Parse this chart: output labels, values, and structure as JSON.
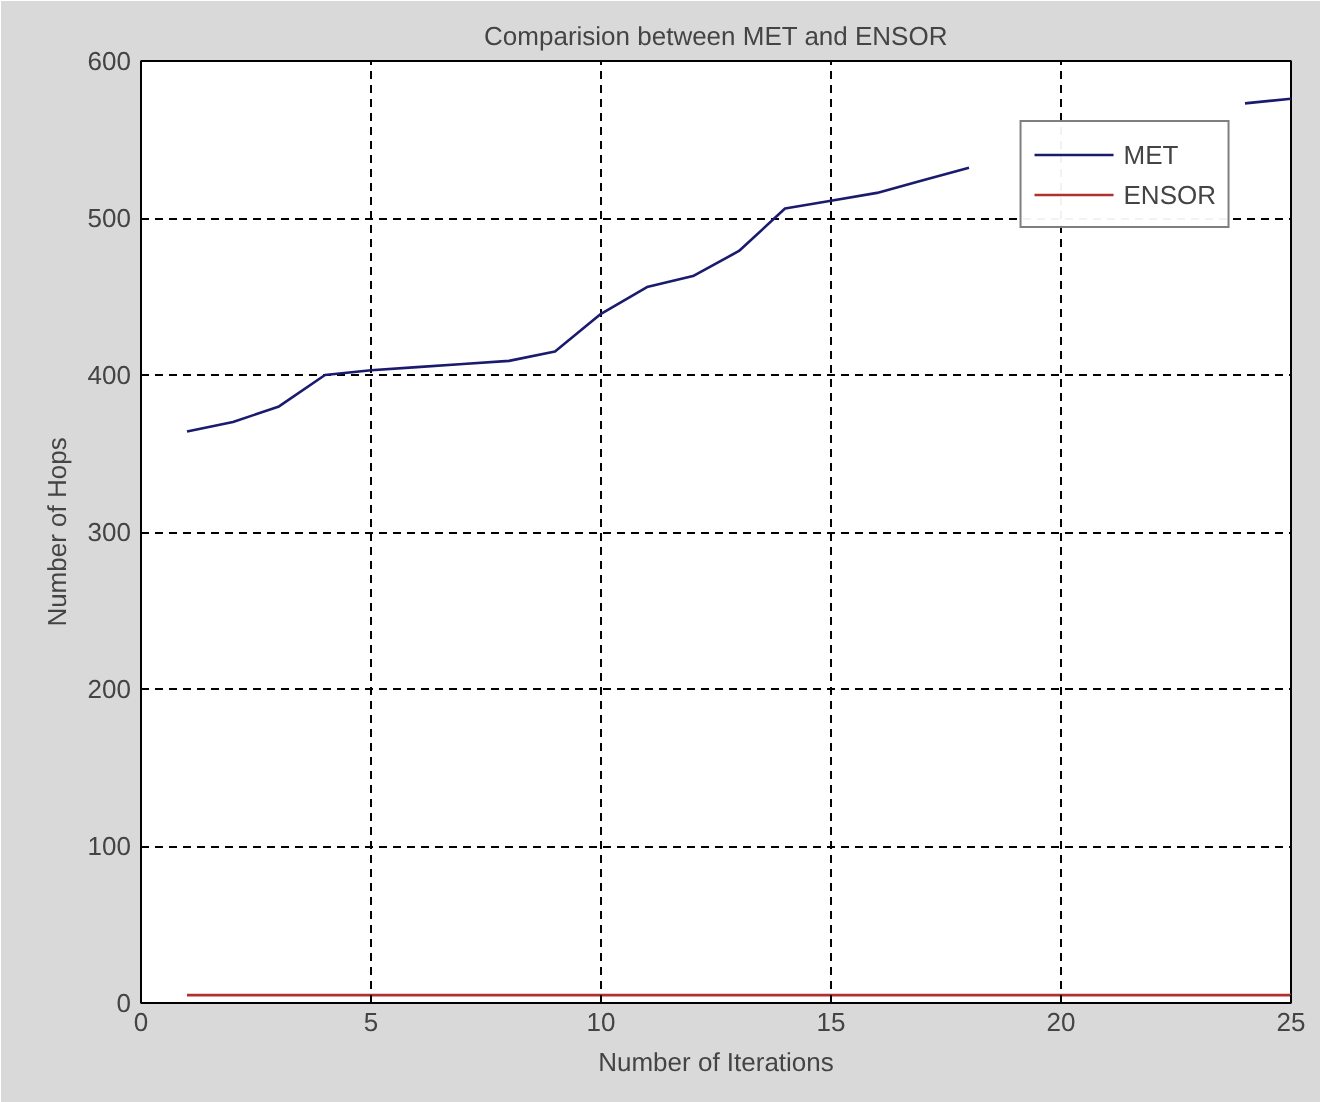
{
  "chart_data": {
    "type": "line",
    "title": "Comparision between MET and ENSOR",
    "xlabel": "Number of Iterations",
    "ylabel": "Number of Hops",
    "x": [
      1,
      2,
      3,
      4,
      5,
      6,
      7,
      8,
      9,
      10,
      11,
      12,
      13,
      14,
      15,
      16,
      17,
      18,
      19,
      20,
      21,
      22,
      23,
      24,
      25
    ],
    "series": [
      {
        "name": "MET",
        "color": "#1a1a6e",
        "values": [
          364,
          370,
          380,
          400,
          403,
          405,
          407,
          409,
          415,
          439,
          456,
          463,
          479,
          506,
          511,
          516,
          524,
          532,
          null,
          null,
          null,
          null,
          null,
          573,
          576
        ]
      },
      {
        "name": "ENSOR",
        "color": "#b03030",
        "values": [
          5,
          5,
          5,
          5,
          5,
          5,
          5,
          5,
          5,
          5,
          5,
          5,
          5,
          5,
          5,
          5,
          5,
          5,
          5,
          5,
          5,
          5,
          5,
          5,
          5
        ]
      }
    ],
    "xlim": [
      0,
      25
    ],
    "ylim": [
      0,
      600
    ],
    "xticks": [
      0,
      5,
      10,
      15,
      20,
      25
    ],
    "yticks": [
      0,
      100,
      200,
      300,
      400,
      500,
      600
    ],
    "grid": true,
    "legend": "top right",
    "line_style": "solid"
  }
}
